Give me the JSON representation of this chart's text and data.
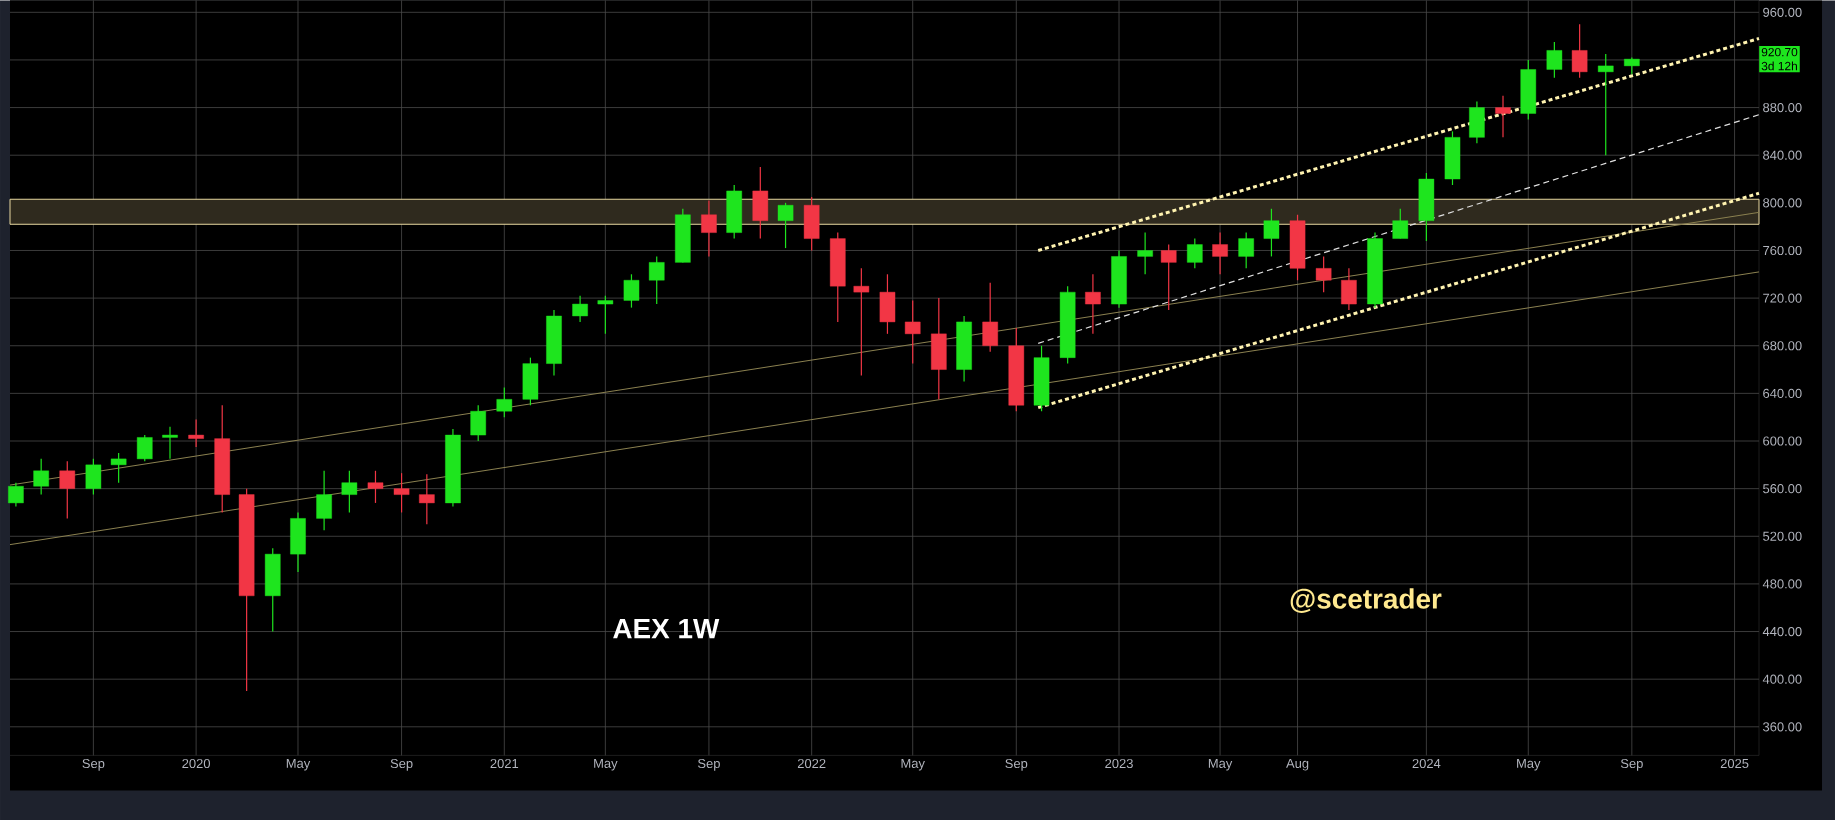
{
  "chart_data": {
    "type": "candlestick",
    "x": [
      "2019-06",
      "2019-07",
      "2019-08",
      "2019-09",
      "2019-10",
      "2019-11",
      "2019-12",
      "2020-01",
      "2020-02",
      "2020-03",
      "2020-04",
      "2020-05",
      "2020-06",
      "2020-07",
      "2020-08",
      "2020-09",
      "2020-10",
      "2020-11",
      "2020-12",
      "2021-01",
      "2021-02",
      "2021-03",
      "2021-04",
      "2021-05",
      "2021-06",
      "2021-07",
      "2021-08",
      "2021-09",
      "2021-10",
      "2021-11",
      "2021-12",
      "2022-01",
      "2022-02",
      "2022-03",
      "2022-04",
      "2022-05",
      "2022-06",
      "2022-07",
      "2022-08",
      "2022-09",
      "2022-10",
      "2022-11",
      "2022-12",
      "2023-01",
      "2023-02",
      "2023-03",
      "2023-04",
      "2023-05",
      "2023-06",
      "2023-07",
      "2023-08",
      "2023-09",
      "2023-10",
      "2023-11",
      "2023-12",
      "2024-01",
      "2024-02",
      "2024-03",
      "2024-04",
      "2024-05",
      "2024-06",
      "2024-07",
      "2024-08",
      "2024-09"
    ],
    "ohlc": [
      [
        548,
        565,
        545,
        562
      ],
      [
        562,
        585,
        555,
        575
      ],
      [
        575,
        583,
        535,
        560
      ],
      [
        560,
        585,
        555,
        580
      ],
      [
        580,
        590,
        565,
        585
      ],
      [
        585,
        605,
        583,
        603
      ],
      [
        603,
        612,
        585,
        605
      ],
      [
        605,
        618,
        595,
        602
      ],
      [
        602,
        630,
        540,
        555
      ],
      [
        555,
        560,
        390,
        470
      ],
      [
        470,
        510,
        440,
        505
      ],
      [
        505,
        540,
        490,
        535
      ],
      [
        535,
        575,
        525,
        555
      ],
      [
        555,
        575,
        540,
        565
      ],
      [
        565,
        575,
        548,
        560
      ],
      [
        560,
        573,
        540,
        555
      ],
      [
        555,
        572,
        530,
        548
      ],
      [
        548,
        610,
        545,
        605
      ],
      [
        605,
        630,
        600,
        625
      ],
      [
        625,
        645,
        620,
        635
      ],
      [
        635,
        670,
        630,
        665
      ],
      [
        665,
        710,
        655,
        705
      ],
      [
        705,
        722,
        700,
        715
      ],
      [
        715,
        722,
        690,
        718
      ],
      [
        718,
        740,
        712,
        735
      ],
      [
        735,
        755,
        715,
        750
      ],
      [
        750,
        795,
        750,
        790
      ],
      [
        790,
        802,
        755,
        775
      ],
      [
        775,
        815,
        770,
        810
      ],
      [
        810,
        830,
        770,
        785
      ],
      [
        785,
        800,
        762,
        798
      ],
      [
        798,
        805,
        760,
        770
      ],
      [
        770,
        775,
        700,
        730
      ],
      [
        730,
        745,
        655,
        725
      ],
      [
        725,
        740,
        690,
        700
      ],
      [
        700,
        718,
        665,
        690
      ],
      [
        690,
        720,
        635,
        660
      ],
      [
        660,
        705,
        650,
        700
      ],
      [
        700,
        733,
        675,
        680
      ],
      [
        680,
        695,
        625,
        630
      ],
      [
        630,
        680,
        625,
        670
      ],
      [
        670,
        730,
        665,
        725
      ],
      [
        725,
        740,
        690,
        715
      ],
      [
        715,
        760,
        712,
        755
      ],
      [
        755,
        775,
        740,
        760
      ],
      [
        760,
        765,
        710,
        750
      ],
      [
        750,
        770,
        745,
        765
      ],
      [
        765,
        775,
        740,
        755
      ],
      [
        755,
        775,
        745,
        770
      ],
      [
        770,
        795,
        755,
        785
      ],
      [
        785,
        790,
        735,
        745
      ],
      [
        745,
        755,
        725,
        735
      ],
      [
        735,
        745,
        710,
        715
      ],
      [
        715,
        775,
        712,
        770
      ],
      [
        770,
        795,
        770,
        785
      ],
      [
        785,
        825,
        768,
        820
      ],
      [
        820,
        860,
        815,
        855
      ],
      [
        855,
        885,
        850,
        880
      ],
      [
        880,
        890,
        855,
        875
      ],
      [
        875,
        920,
        870,
        912
      ],
      [
        912,
        935,
        905,
        928
      ],
      [
        928,
        950,
        905,
        910
      ],
      [
        910,
        925,
        840,
        915
      ],
      [
        915,
        922,
        908,
        920.7
      ]
    ],
    "series": [
      {
        "type": "line",
        "x": [
          "2019-05-25",
          "2025-01-30"
        ],
        "values": [
          563,
          792
        ],
        "color": "#8c8250",
        "line_style": "solid"
      },
      {
        "type": "line",
        "x": [
          "2019-05-25",
          "2025-01-30"
        ],
        "values": [
          513,
          742
        ],
        "color": "#8c8250",
        "line_style": "solid"
      },
      {
        "type": "line",
        "x": [
          "2022-09-27",
          "2025-01-30"
        ],
        "values": [
          760,
          938
        ],
        "color": "#fff3b0",
        "line_style": "dotted"
      },
      {
        "type": "line",
        "x": [
          "2022-09-27",
          "2025-01-30"
        ],
        "values": [
          682,
          874
        ],
        "color": "#e0e0e0",
        "line_style": "dashed"
      },
      {
        "type": "line",
        "x": [
          "2022-09-27",
          "2025-01-30"
        ],
        "values": [
          628,
          808
        ],
        "color": "#fff3b0",
        "line_style": "dotted"
      }
    ],
    "bands": [
      {
        "axis": "y",
        "from": 782,
        "to": 803,
        "color": "#2f2a1e"
      }
    ],
    "annotations": [
      "AEX 1W",
      "@scetrader",
      "920.70",
      "3d 12h"
    ],
    "xlim": [
      "2019-05-25",
      "2025-01-30"
    ],
    "xticks": [
      {
        "value": "2019-09-01",
        "label": "Sep"
      },
      {
        "value": "2020-01-01",
        "label": "2020"
      },
      {
        "value": "2020-05-01",
        "label": "May"
      },
      {
        "value": "2020-09-01",
        "label": "Sep"
      },
      {
        "value": "2021-01-01",
        "label": "2021"
      },
      {
        "value": "2021-05-01",
        "label": "May"
      },
      {
        "value": "2021-09-01",
        "label": "Sep"
      },
      {
        "value": "2022-01-01",
        "label": "2022"
      },
      {
        "value": "2022-05-01",
        "label": "May"
      },
      {
        "value": "2022-09-01",
        "label": "Sep"
      },
      {
        "value": "2023-01-01",
        "label": "2023"
      },
      {
        "value": "2023-05-01",
        "label": "May"
      },
      {
        "value": "2023-08-01",
        "label": "Aug"
      },
      {
        "value": "2024-01-01",
        "label": "2024"
      },
      {
        "value": "2024-05-01",
        "label": "May"
      },
      {
        "value": "2024-09-01",
        "label": "Sep"
      },
      {
        "value": "2025-01-01",
        "label": "2025"
      }
    ],
    "ylim": [
      336,
      970
    ],
    "yticks": [
      {
        "value": 360,
        "label": "360.00"
      },
      {
        "value": 400,
        "label": "400.00"
      },
      {
        "value": 440,
        "label": "440.00"
      },
      {
        "value": 480,
        "label": "480.00"
      },
      {
        "value": 520,
        "label": "520.00"
      },
      {
        "value": 560,
        "label": "560.00"
      },
      {
        "value": 600,
        "label": "600.00"
      },
      {
        "value": 640,
        "label": "640.00"
      },
      {
        "value": 680,
        "label": "680.00"
      },
      {
        "value": 720,
        "label": "720.00"
      },
      {
        "value": 760,
        "label": "760.00"
      },
      {
        "value": 800,
        "label": "800.00"
      },
      {
        "value": 840,
        "label": "840.00"
      },
      {
        "value": 880,
        "label": "880.00"
      },
      {
        "value": 920,
        "label": null
      },
      {
        "value": 960,
        "label": "960.00"
      }
    ],
    "grid": true
  }
}
